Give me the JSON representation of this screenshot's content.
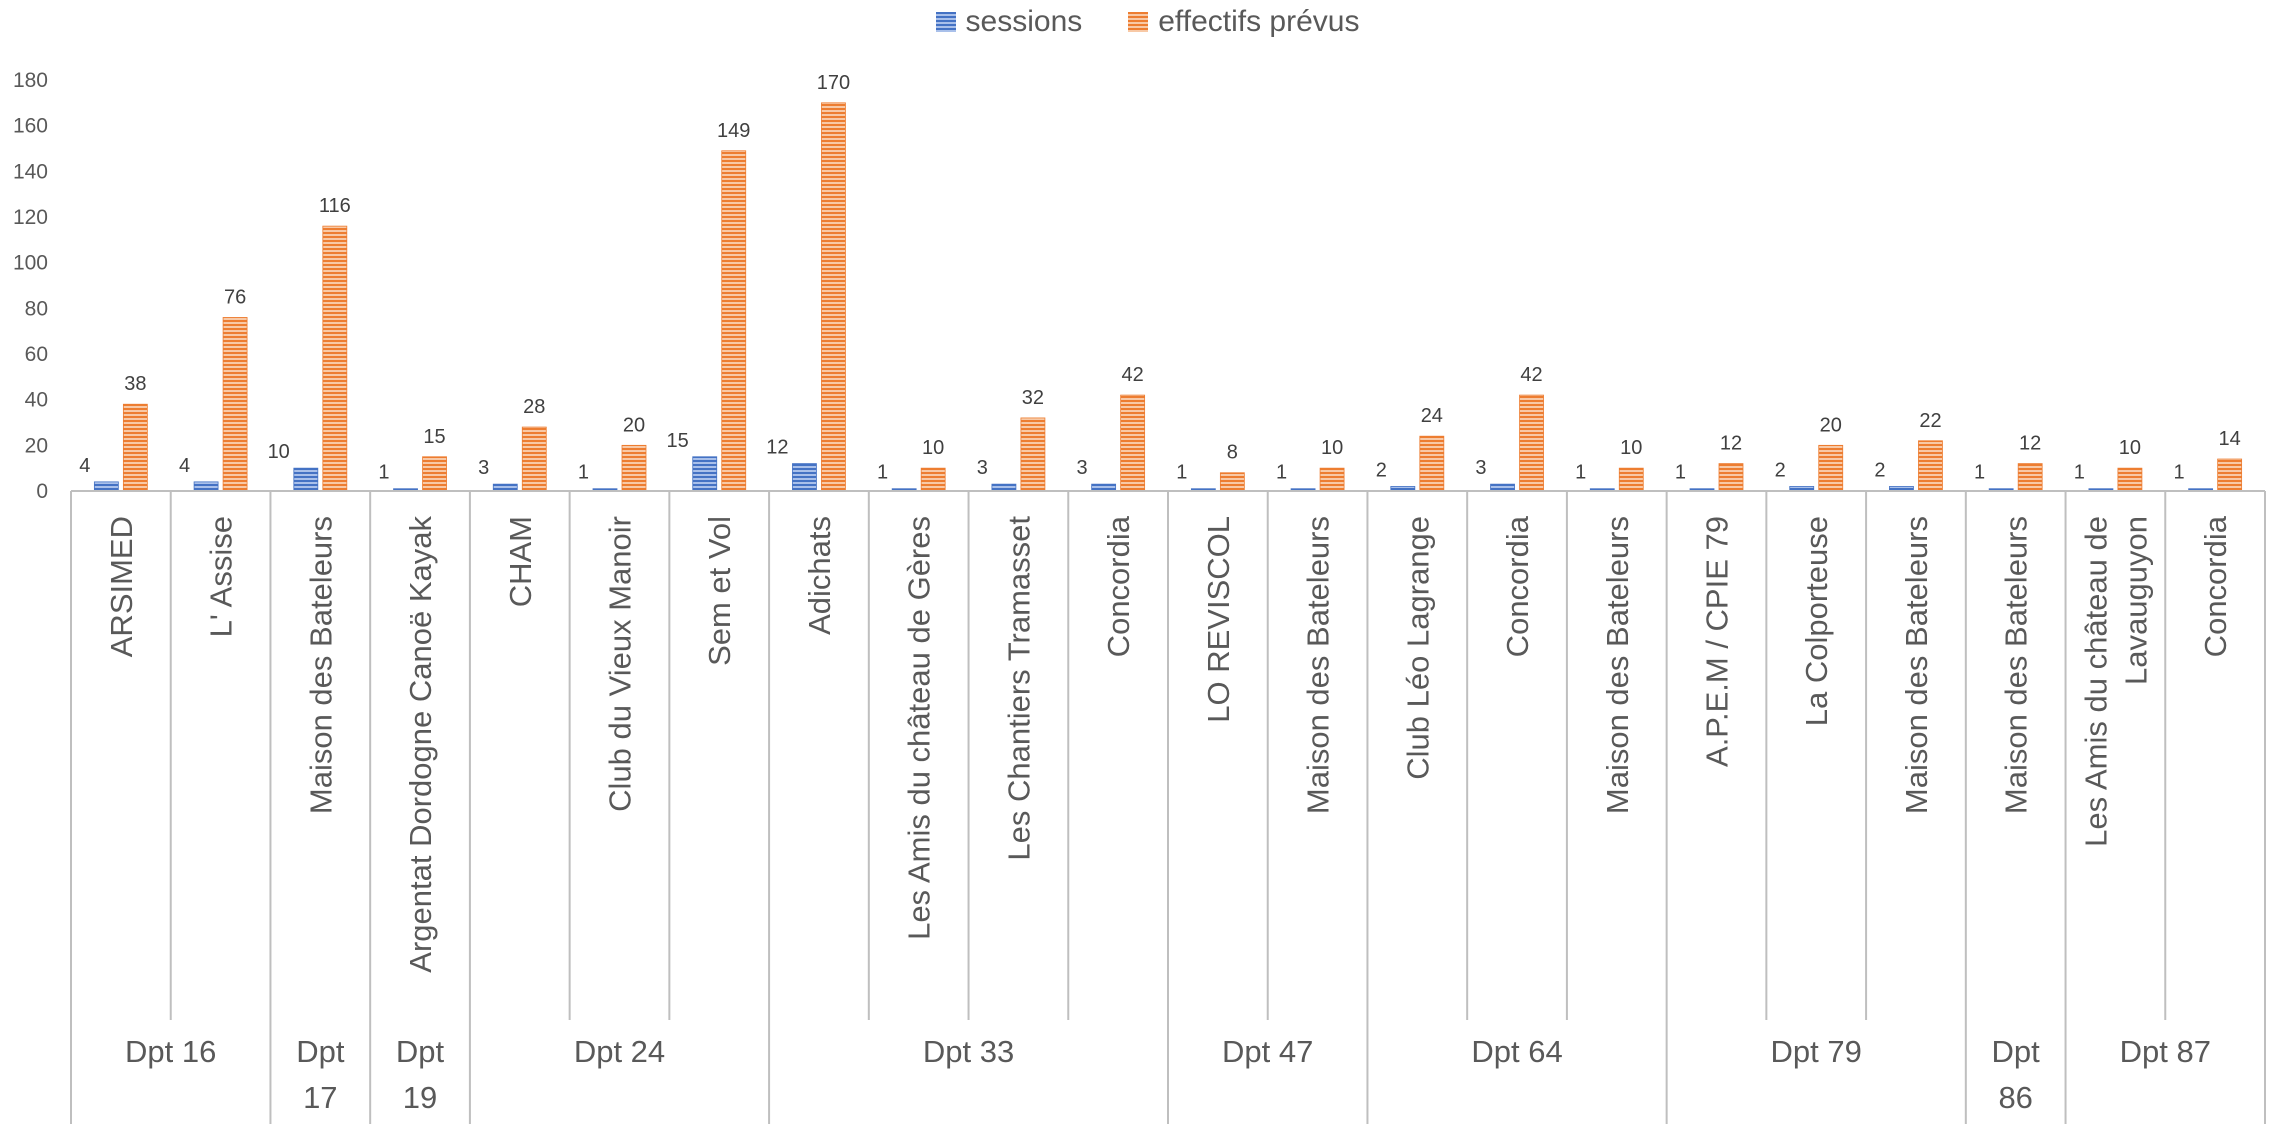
{
  "chart_data": {
    "type": "bar",
    "title": "",
    "xlabel": "",
    "ylabel": "",
    "ylim": [
      0,
      180
    ],
    "yticks": [
      "0",
      "20",
      "40",
      "60",
      "80",
      "100",
      "120",
      "140",
      "160",
      "180"
    ],
    "legend_position": "top-center",
    "grid": false,
    "bar_pattern": "horizontal-stripes",
    "series": [
      {
        "name": "sessions",
        "color": "#4472C4",
        "values": [
          4,
          4,
          10,
          1,
          3,
          1,
          15,
          12,
          1,
          3,
          3,
          1,
          1,
          2,
          3,
          1,
          1,
          2,
          2,
          1,
          1,
          1
        ]
      },
      {
        "name": "effectifs prévus",
        "color": "#ED7D31",
        "values": [
          38,
          76,
          116,
          15,
          28,
          20,
          149,
          170,
          10,
          32,
          42,
          8,
          10,
          24,
          42,
          10,
          12,
          20,
          22,
          12,
          10,
          14
        ]
      }
    ],
    "categories": [
      "ARSIMED",
      "L' Assise",
      "Maison des Bateleurs",
      "Argentat Dordogne Canoë Kayak",
      "CHAM",
      "Club du Vieux Manoir",
      "Sem et Vol",
      "Adichats",
      "Les Amis du château de Gères",
      "Les Chantiers Tramasset",
      "Concordia",
      "LO REVISCOL",
      "Maison des Bateleurs",
      "Club Léo Lagrange",
      "Concordia",
      "Maison des Bateleurs",
      "A.P.E.M / CPIE 79",
      "La Colporteuse",
      "Maison des Bateleurs",
      "Maison des Bateleurs",
      "Les Amis du château de Lavauguyon",
      "Concordia"
    ],
    "category_lines": [
      [
        "ARSIMED"
      ],
      [
        "L' Assise"
      ],
      [
        "Maison des Bateleurs"
      ],
      [
        "Argentat Dordogne Canoë Kayak"
      ],
      [
        "CHAM"
      ],
      [
        "Club du Vieux Manoir"
      ],
      [
        "Sem et Vol"
      ],
      [
        "Adichats"
      ],
      [
        "Les Amis du château de Gères"
      ],
      [
        "Les Chantiers Tramasset"
      ],
      [
        "Concordia"
      ],
      [
        "LO REVISCOL"
      ],
      [
        "Maison des Bateleurs"
      ],
      [
        "Club Léo Lagrange"
      ],
      [
        "Concordia"
      ],
      [
        "Maison des Bateleurs"
      ],
      [
        "A.P.E.M / CPIE 79"
      ],
      [
        "La Colporteuse"
      ],
      [
        "Maison des Bateleurs"
      ],
      [
        "Maison des Bateleurs"
      ],
      [
        "Les Amis du château de",
        "Lavauguyon"
      ],
      [
        "Concordia"
      ]
    ],
    "groups": [
      {
        "label": "Dpt 16",
        "lines": [
          "Dpt 16"
        ],
        "count": 2
      },
      {
        "label": "Dpt 17",
        "lines": [
          "Dpt",
          "17"
        ],
        "count": 1
      },
      {
        "label": "Dpt 19",
        "lines": [
          "Dpt",
          "19"
        ],
        "count": 1
      },
      {
        "label": "Dpt 24",
        "lines": [
          "Dpt 24"
        ],
        "count": 3
      },
      {
        "label": "Dpt 33",
        "lines": [
          "Dpt 33"
        ],
        "count": 4
      },
      {
        "label": "Dpt 47",
        "lines": [
          "Dpt 47"
        ],
        "count": 2
      },
      {
        "label": "Dpt 64",
        "lines": [
          "Dpt 64"
        ],
        "count": 3
      },
      {
        "label": "Dpt 79",
        "lines": [
          "Dpt 79"
        ],
        "count": 3
      },
      {
        "label": "Dpt 86",
        "lines": [
          "Dpt",
          "86"
        ],
        "count": 1
      },
      {
        "label": "Dpt 87",
        "lines": [
          "Dpt 87"
        ],
        "count": 2
      }
    ]
  }
}
